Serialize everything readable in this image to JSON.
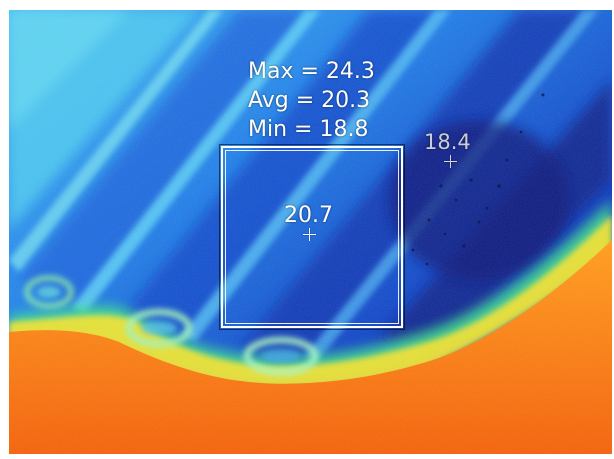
{
  "readout": {
    "max": "Max = 24.3",
    "avg": "Avg = 20.3",
    "min": "Min = 18.8"
  },
  "spots": {
    "center": {
      "value": "20.7"
    },
    "secondary": {
      "value": "18.4"
    }
  },
  "colors": {
    "hot": "#ff7a10",
    "warm": "#ffd22a",
    "mid": "#3ecfe0",
    "cool": "#1e64e0",
    "cold": "#0a1f8c"
  },
  "icons": {
    "spot_marker": "crosshair-icon",
    "roi": "measurement-box"
  }
}
